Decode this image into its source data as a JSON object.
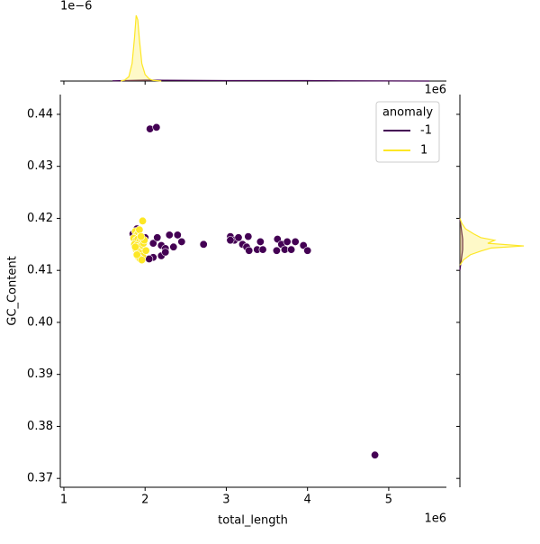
{
  "chart_data": {
    "type": "scatter",
    "x_label": "total_length",
    "y_label": "GC_Content",
    "x_offset_label": "1e6",
    "xlim": [
      0.956,
      5.71
    ],
    "xticks": [
      1,
      2,
      3,
      4,
      5
    ],
    "ylim": [
      0.3683,
      0.4438
    ],
    "yticks": [
      0.37,
      0.38,
      0.39,
      {
        "value": 0.4,
        "label": "0.40"
      },
      0.41,
      0.42,
      0.43,
      0.44
    ],
    "legend_title": "anomaly",
    "legend_corner": "upper right",
    "series": [
      {
        "name": "-1",
        "color": "#440154",
        "x": [
          2.06,
          2.14,
          4.83,
          2.0,
          2.1,
          2.15,
          2.2,
          2.25,
          2.3,
          2.35,
          2.4,
          2.45,
          2.1,
          2.2,
          2.25,
          2.05,
          1.9,
          1.85,
          2.72,
          3.05,
          3.1,
          3.15,
          3.2,
          3.25,
          3.28,
          3.27,
          3.38,
          3.42,
          3.45,
          3.05,
          3.63,
          3.62,
          3.68,
          3.72,
          3.75,
          3.8,
          3.85,
          3.95,
          4.0
        ],
        "y": [
          0.4372,
          0.4375,
          0.3745,
          0.4163,
          0.4152,
          0.4163,
          0.4148,
          0.4142,
          0.4168,
          0.4145,
          0.4168,
          0.4155,
          0.4125,
          0.4128,
          0.4135,
          0.4122,
          0.418,
          0.417,
          0.415,
          0.4165,
          0.4158,
          0.4163,
          0.415,
          0.4145,
          0.4138,
          0.4165,
          0.414,
          0.4155,
          0.414,
          0.4158,
          0.416,
          0.4138,
          0.415,
          0.414,
          0.4155,
          0.414,
          0.4155,
          0.4148,
          0.4138
        ]
      },
      {
        "name": "1",
        "color": "#fde725",
        "x": [
          1.97,
          1.88,
          1.9,
          1.92,
          1.94,
          1.86,
          1.89,
          1.91,
          1.93,
          1.95,
          1.87,
          1.9,
          1.92,
          1.94,
          1.96,
          1.98,
          1.89,
          1.91,
          1.93,
          1.95,
          1.97,
          1.92,
          1.94,
          1.9,
          1.96,
          1.99,
          1.93,
          1.88,
          1.95,
          2.01
        ],
        "y": [
          0.4195,
          0.4175,
          0.4168,
          0.4172,
          0.4165,
          0.4162,
          0.4158,
          0.416,
          0.4155,
          0.4152,
          0.415,
          0.4148,
          0.4145,
          0.4142,
          0.4148,
          0.4152,
          0.414,
          0.4138,
          0.4135,
          0.4132,
          0.4128,
          0.4125,
          0.4122,
          0.413,
          0.412,
          0.4158,
          0.4178,
          0.4145,
          0.4165,
          0.4138
        ]
      }
    ],
    "top_marginal": {
      "offset_label": "1e−6",
      "ylim": [
        0,
        3.5
      ],
      "series": [
        {
          "color": "#440154",
          "x": [
            1.6,
            2.0,
            2.5,
            3.0,
            3.5,
            4.0,
            4.5,
            5.0,
            5.5
          ],
          "density": [
            0.01,
            0.04,
            0.03,
            0.02,
            0.02,
            0.02,
            0.01,
            0.005,
            0
          ]
        },
        {
          "color": "#fde725",
          "x": [
            1.7,
            1.75,
            1.8,
            1.84,
            1.87,
            1.89,
            1.91,
            1.93,
            1.96,
            2.0,
            2.05,
            2.1,
            2.2
          ],
          "density": [
            0,
            0.05,
            0.2,
            0.8,
            2.0,
            3.0,
            2.8,
            1.9,
            0.8,
            0.3,
            0.1,
            0.03,
            0
          ]
        }
      ]
    },
    "right_marginal": {
      "offset_label": "1e6",
      "xlim": [
        0,
        110
      ],
      "series": [
        {
          "color": "#440154",
          "y": [
            0.41,
            0.412,
            0.414,
            0.416,
            0.418,
            0.42
          ],
          "density": [
            0,
            2,
            4,
            4,
            2,
            0
          ]
        },
        {
          "color": "#fde725",
          "y": [
            0.411,
            0.412,
            0.413,
            0.4137,
            0.4143,
            0.4147,
            0.4152,
            0.4158,
            0.4163,
            0.417,
            0.418,
            0.419,
            0.42
          ],
          "density": [
            0,
            5,
            15,
            30,
            45,
            92,
            40,
            50,
            30,
            20,
            8,
            3,
            0
          ]
        }
      ]
    }
  }
}
